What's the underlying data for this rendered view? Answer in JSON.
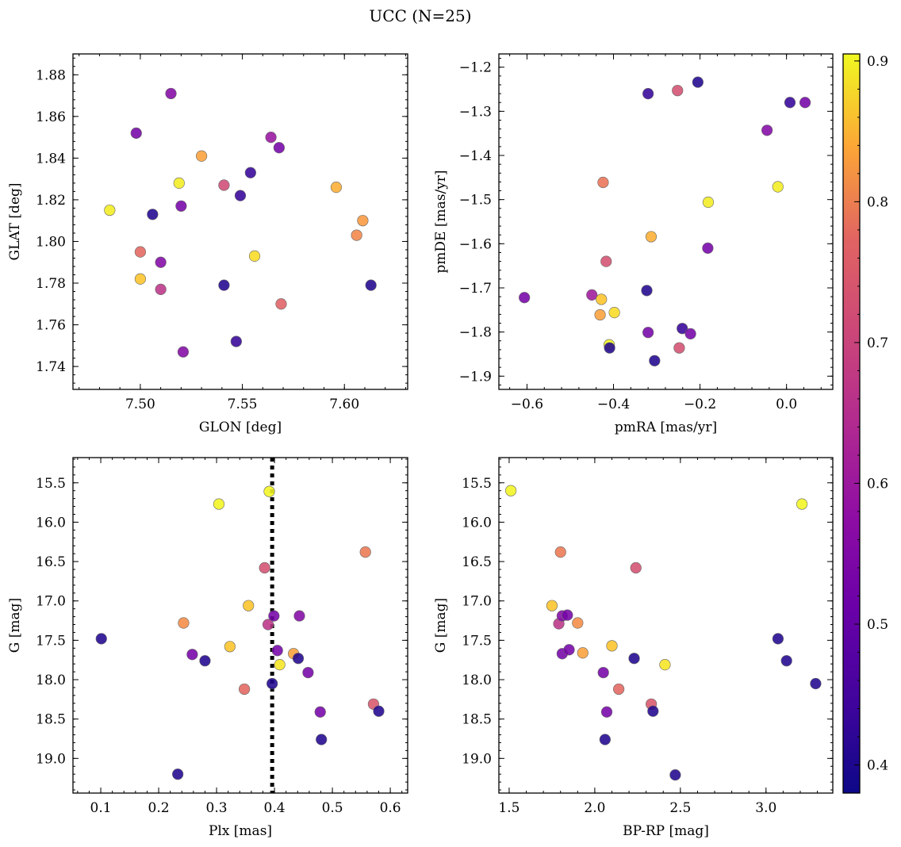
{
  "figure": {
    "title": "UCC (N=25)"
  },
  "colorbar": {
    "range": [
      0.38,
      0.905
    ],
    "ticks": [
      0.4,
      0.5,
      0.6,
      0.7,
      0.8,
      0.9
    ],
    "tick_labels": [
      "0.4",
      "0.5",
      "0.6",
      "0.7",
      "0.8",
      "0.9"
    ],
    "colormap": "plasma"
  },
  "chart_data": [
    {
      "type": "scatter",
      "xlabel": "GLON [deg]",
      "ylabel": "GLAT [deg]",
      "xlim": [
        7.467,
        7.631
      ],
      "ylim": [
        1.729,
        1.89
      ],
      "xticks": [
        7.5,
        7.55,
        7.6
      ],
      "xtick_labels": [
        "7.50",
        "7.55",
        "7.60"
      ],
      "yticks": [
        1.74,
        1.76,
        1.78,
        1.8,
        1.82,
        1.84,
        1.86,
        1.88
      ],
      "ytick_labels": [
        "1.74",
        "1.76",
        "1.78",
        "1.80",
        "1.82",
        "1.84",
        "1.86",
        "1.88"
      ],
      "invert_y": false,
      "points": [
        {
          "x": 7.485,
          "y": 1.815,
          "c": 0.89
        },
        {
          "x": 7.498,
          "y": 1.852,
          "c": 0.5
        },
        {
          "x": 7.5,
          "y": 1.795,
          "c": 0.7
        },
        {
          "x": 7.5,
          "y": 1.782,
          "c": 0.84
        },
        {
          "x": 7.506,
          "y": 1.813,
          "c": 0.4
        },
        {
          "x": 7.51,
          "y": 1.79,
          "c": 0.52
        },
        {
          "x": 7.51,
          "y": 1.777,
          "c": 0.61
        },
        {
          "x": 7.515,
          "y": 1.871,
          "c": 0.52
        },
        {
          "x": 7.519,
          "y": 1.828,
          "c": 0.89
        },
        {
          "x": 7.52,
          "y": 1.817,
          "c": 0.5
        },
        {
          "x": 7.521,
          "y": 1.747,
          "c": 0.52
        },
        {
          "x": 7.53,
          "y": 1.841,
          "c": 0.79
        },
        {
          "x": 7.541,
          "y": 1.827,
          "c": 0.65
        },
        {
          "x": 7.541,
          "y": 1.779,
          "c": 0.4
        },
        {
          "x": 7.547,
          "y": 1.752,
          "c": 0.42
        },
        {
          "x": 7.549,
          "y": 1.822,
          "c": 0.42
        },
        {
          "x": 7.554,
          "y": 1.833,
          "c": 0.42
        },
        {
          "x": 7.556,
          "y": 1.793,
          "c": 0.87
        },
        {
          "x": 7.564,
          "y": 1.85,
          "c": 0.55
        },
        {
          "x": 7.568,
          "y": 1.845,
          "c": 0.5
        },
        {
          "x": 7.569,
          "y": 1.77,
          "c": 0.69
        },
        {
          "x": 7.596,
          "y": 1.826,
          "c": 0.81
        },
        {
          "x": 7.606,
          "y": 1.803,
          "c": 0.75
        },
        {
          "x": 7.609,
          "y": 1.81,
          "c": 0.78
        },
        {
          "x": 7.613,
          "y": 1.779,
          "c": 0.4
        }
      ]
    },
    {
      "type": "scatter",
      "xlabel": "pmRA [mas/yr]",
      "ylabel": "pmDE [mas/yr]",
      "xlim": [
        -0.665,
        0.107
      ],
      "ylim": [
        -1.93,
        -1.17
      ],
      "xticks": [
        -0.6,
        -0.4,
        -0.2,
        0.0
      ],
      "xtick_labels": [
        "−0.6",
        "−0.4",
        "−0.2",
        "0.0"
      ],
      "yticks": [
        -1.9,
        -1.8,
        -1.7,
        -1.6,
        -1.5,
        -1.4,
        -1.3,
        -1.2
      ],
      "ytick_labels": [
        "−1.9",
        "−1.8",
        "−1.7",
        "−1.6",
        "−1.5",
        "−1.4",
        "−1.3",
        "−1.2"
      ],
      "invert_y": false,
      "points": [
        {
          "x": -0.606,
          "y": -1.722,
          "c": 0.5
        },
        {
          "x": -0.45,
          "y": -1.716,
          "c": 0.56
        },
        {
          "x": -0.431,
          "y": -1.761,
          "c": 0.79
        },
        {
          "x": -0.428,
          "y": -1.726,
          "c": 0.84
        },
        {
          "x": -0.424,
          "y": -1.461,
          "c": 0.72
        },
        {
          "x": -0.417,
          "y": -1.64,
          "c": 0.66
        },
        {
          "x": -0.41,
          "y": -1.829,
          "c": 0.9
        },
        {
          "x": -0.409,
          "y": -1.836,
          "c": 0.4
        },
        {
          "x": -0.398,
          "y": -1.756,
          "c": 0.87
        },
        {
          "x": -0.323,
          "y": -1.706,
          "c": 0.4
        },
        {
          "x": -0.32,
          "y": -1.26,
          "c": 0.42
        },
        {
          "x": -0.32,
          "y": -1.801,
          "c": 0.5
        },
        {
          "x": -0.313,
          "y": -1.584,
          "c": 0.81
        },
        {
          "x": -0.305,
          "y": -1.865,
          "c": 0.4
        },
        {
          "x": -0.252,
          "y": -1.253,
          "c": 0.66
        },
        {
          "x": -0.248,
          "y": -1.836,
          "c": 0.66
        },
        {
          "x": -0.241,
          "y": -1.792,
          "c": 0.42
        },
        {
          "x": -0.222,
          "y": -1.804,
          "c": 0.5
        },
        {
          "x": -0.205,
          "y": -1.234,
          "c": 0.4
        },
        {
          "x": -0.182,
          "y": -1.61,
          "c": 0.5
        },
        {
          "x": -0.181,
          "y": -1.506,
          "c": 0.89
        },
        {
          "x": -0.045,
          "y": -1.343,
          "c": 0.52
        },
        {
          "x": -0.02,
          "y": -1.471,
          "c": 0.89
        },
        {
          "x": 0.008,
          "y": -1.28,
          "c": 0.42
        },
        {
          "x": 0.043,
          "y": -1.28,
          "c": 0.5
        }
      ]
    },
    {
      "type": "scatter",
      "xlabel": "Plx [mas]",
      "ylabel": "G [mag]",
      "xlim": [
        0.052,
        0.63
      ],
      "ylim": [
        15.18,
        19.44
      ],
      "xticks": [
        0.1,
        0.2,
        0.3,
        0.4,
        0.5,
        0.6
      ],
      "xtick_labels": [
        "0.1",
        "0.2",
        "0.3",
        "0.4",
        "0.5",
        "0.6"
      ],
      "yticks": [
        15.5,
        16.0,
        16.5,
        17.0,
        17.5,
        18.0,
        18.5,
        19.0
      ],
      "ytick_labels": [
        "15.5",
        "16.0",
        "16.5",
        "17.0",
        "17.5",
        "18.0",
        "18.5",
        "19.0"
      ],
      "invert_y": true,
      "vline": 0.396,
      "points": [
        {
          "x": 0.101,
          "y": 17.48,
          "c": 0.4
        },
        {
          "x": 0.233,
          "y": 19.2,
          "c": 0.4
        },
        {
          "x": 0.243,
          "y": 17.28,
          "c": 0.76
        },
        {
          "x": 0.258,
          "y": 17.68,
          "c": 0.5
        },
        {
          "x": 0.28,
          "y": 17.76,
          "c": 0.4
        },
        {
          "x": 0.304,
          "y": 15.77,
          "c": 0.9
        },
        {
          "x": 0.323,
          "y": 17.58,
          "c": 0.84
        },
        {
          "x": 0.348,
          "y": 18.12,
          "c": 0.7
        },
        {
          "x": 0.355,
          "y": 17.06,
          "c": 0.84
        },
        {
          "x": 0.383,
          "y": 16.58,
          "c": 0.66
        },
        {
          "x": 0.389,
          "y": 17.3,
          "c": 0.61
        },
        {
          "x": 0.391,
          "y": 15.61,
          "c": 0.9
        },
        {
          "x": 0.396,
          "y": 18.05,
          "c": 0.4
        },
        {
          "x": 0.399,
          "y": 17.19,
          "c": 0.5
        },
        {
          "x": 0.405,
          "y": 17.63,
          "c": 0.5
        },
        {
          "x": 0.409,
          "y": 17.81,
          "c": 0.88
        },
        {
          "x": 0.433,
          "y": 17.67,
          "c": 0.79
        },
        {
          "x": 0.441,
          "y": 17.73,
          "c": 0.4
        },
        {
          "x": 0.443,
          "y": 17.19,
          "c": 0.52
        },
        {
          "x": 0.458,
          "y": 17.91,
          "c": 0.5
        },
        {
          "x": 0.479,
          "y": 18.41,
          "c": 0.5
        },
        {
          "x": 0.481,
          "y": 18.76,
          "c": 0.4
        },
        {
          "x": 0.557,
          "y": 16.38,
          "c": 0.73
        },
        {
          "x": 0.571,
          "y": 18.31,
          "c": 0.67
        },
        {
          "x": 0.58,
          "y": 18.4,
          "c": 0.4
        }
      ]
    },
    {
      "type": "scatter",
      "xlabel": "BP-RP [mag]",
      "ylabel": "G [mag]",
      "xlim": [
        1.44,
        3.39
      ],
      "ylim": [
        15.18,
        19.44
      ],
      "xticks": [
        1.5,
        2.0,
        2.5,
        3.0
      ],
      "xtick_labels": [
        "1.5",
        "2.0",
        "2.5",
        "3.0"
      ],
      "yticks": [
        15.5,
        16.0,
        16.5,
        17.0,
        17.5,
        18.0,
        18.5,
        19.0
      ],
      "ytick_labels": [
        "15.5",
        "16.0",
        "16.5",
        "17.0",
        "17.5",
        "18.0",
        "18.5",
        "19.0"
      ],
      "invert_y": true,
      "points": [
        {
          "x": 1.51,
          "y": 15.6,
          "c": 0.9
        },
        {
          "x": 1.75,
          "y": 17.06,
          "c": 0.84
        },
        {
          "x": 1.79,
          "y": 17.29,
          "c": 0.61
        },
        {
          "x": 1.8,
          "y": 16.38,
          "c": 0.73
        },
        {
          "x": 1.81,
          "y": 17.19,
          "c": 0.52
        },
        {
          "x": 1.81,
          "y": 17.67,
          "c": 0.5
        },
        {
          "x": 1.84,
          "y": 17.18,
          "c": 0.5
        },
        {
          "x": 1.85,
          "y": 17.62,
          "c": 0.5
        },
        {
          "x": 1.9,
          "y": 17.28,
          "c": 0.76
        },
        {
          "x": 1.93,
          "y": 17.66,
          "c": 0.79
        },
        {
          "x": 2.05,
          "y": 17.91,
          "c": 0.5
        },
        {
          "x": 2.06,
          "y": 18.76,
          "c": 0.4
        },
        {
          "x": 2.07,
          "y": 18.41,
          "c": 0.5
        },
        {
          "x": 2.1,
          "y": 17.57,
          "c": 0.84
        },
        {
          "x": 2.14,
          "y": 18.12,
          "c": 0.7
        },
        {
          "x": 2.23,
          "y": 17.73,
          "c": 0.4
        },
        {
          "x": 2.24,
          "y": 16.58,
          "c": 0.66
        },
        {
          "x": 2.33,
          "y": 18.31,
          "c": 0.67
        },
        {
          "x": 2.34,
          "y": 18.4,
          "c": 0.4
        },
        {
          "x": 2.41,
          "y": 17.81,
          "c": 0.88
        },
        {
          "x": 2.47,
          "y": 19.21,
          "c": 0.4
        },
        {
          "x": 3.07,
          "y": 17.48,
          "c": 0.4
        },
        {
          "x": 3.12,
          "y": 17.76,
          "c": 0.4
        },
        {
          "x": 3.21,
          "y": 15.77,
          "c": 0.9
        },
        {
          "x": 3.29,
          "y": 18.05,
          "c": 0.4
        }
      ]
    }
  ]
}
